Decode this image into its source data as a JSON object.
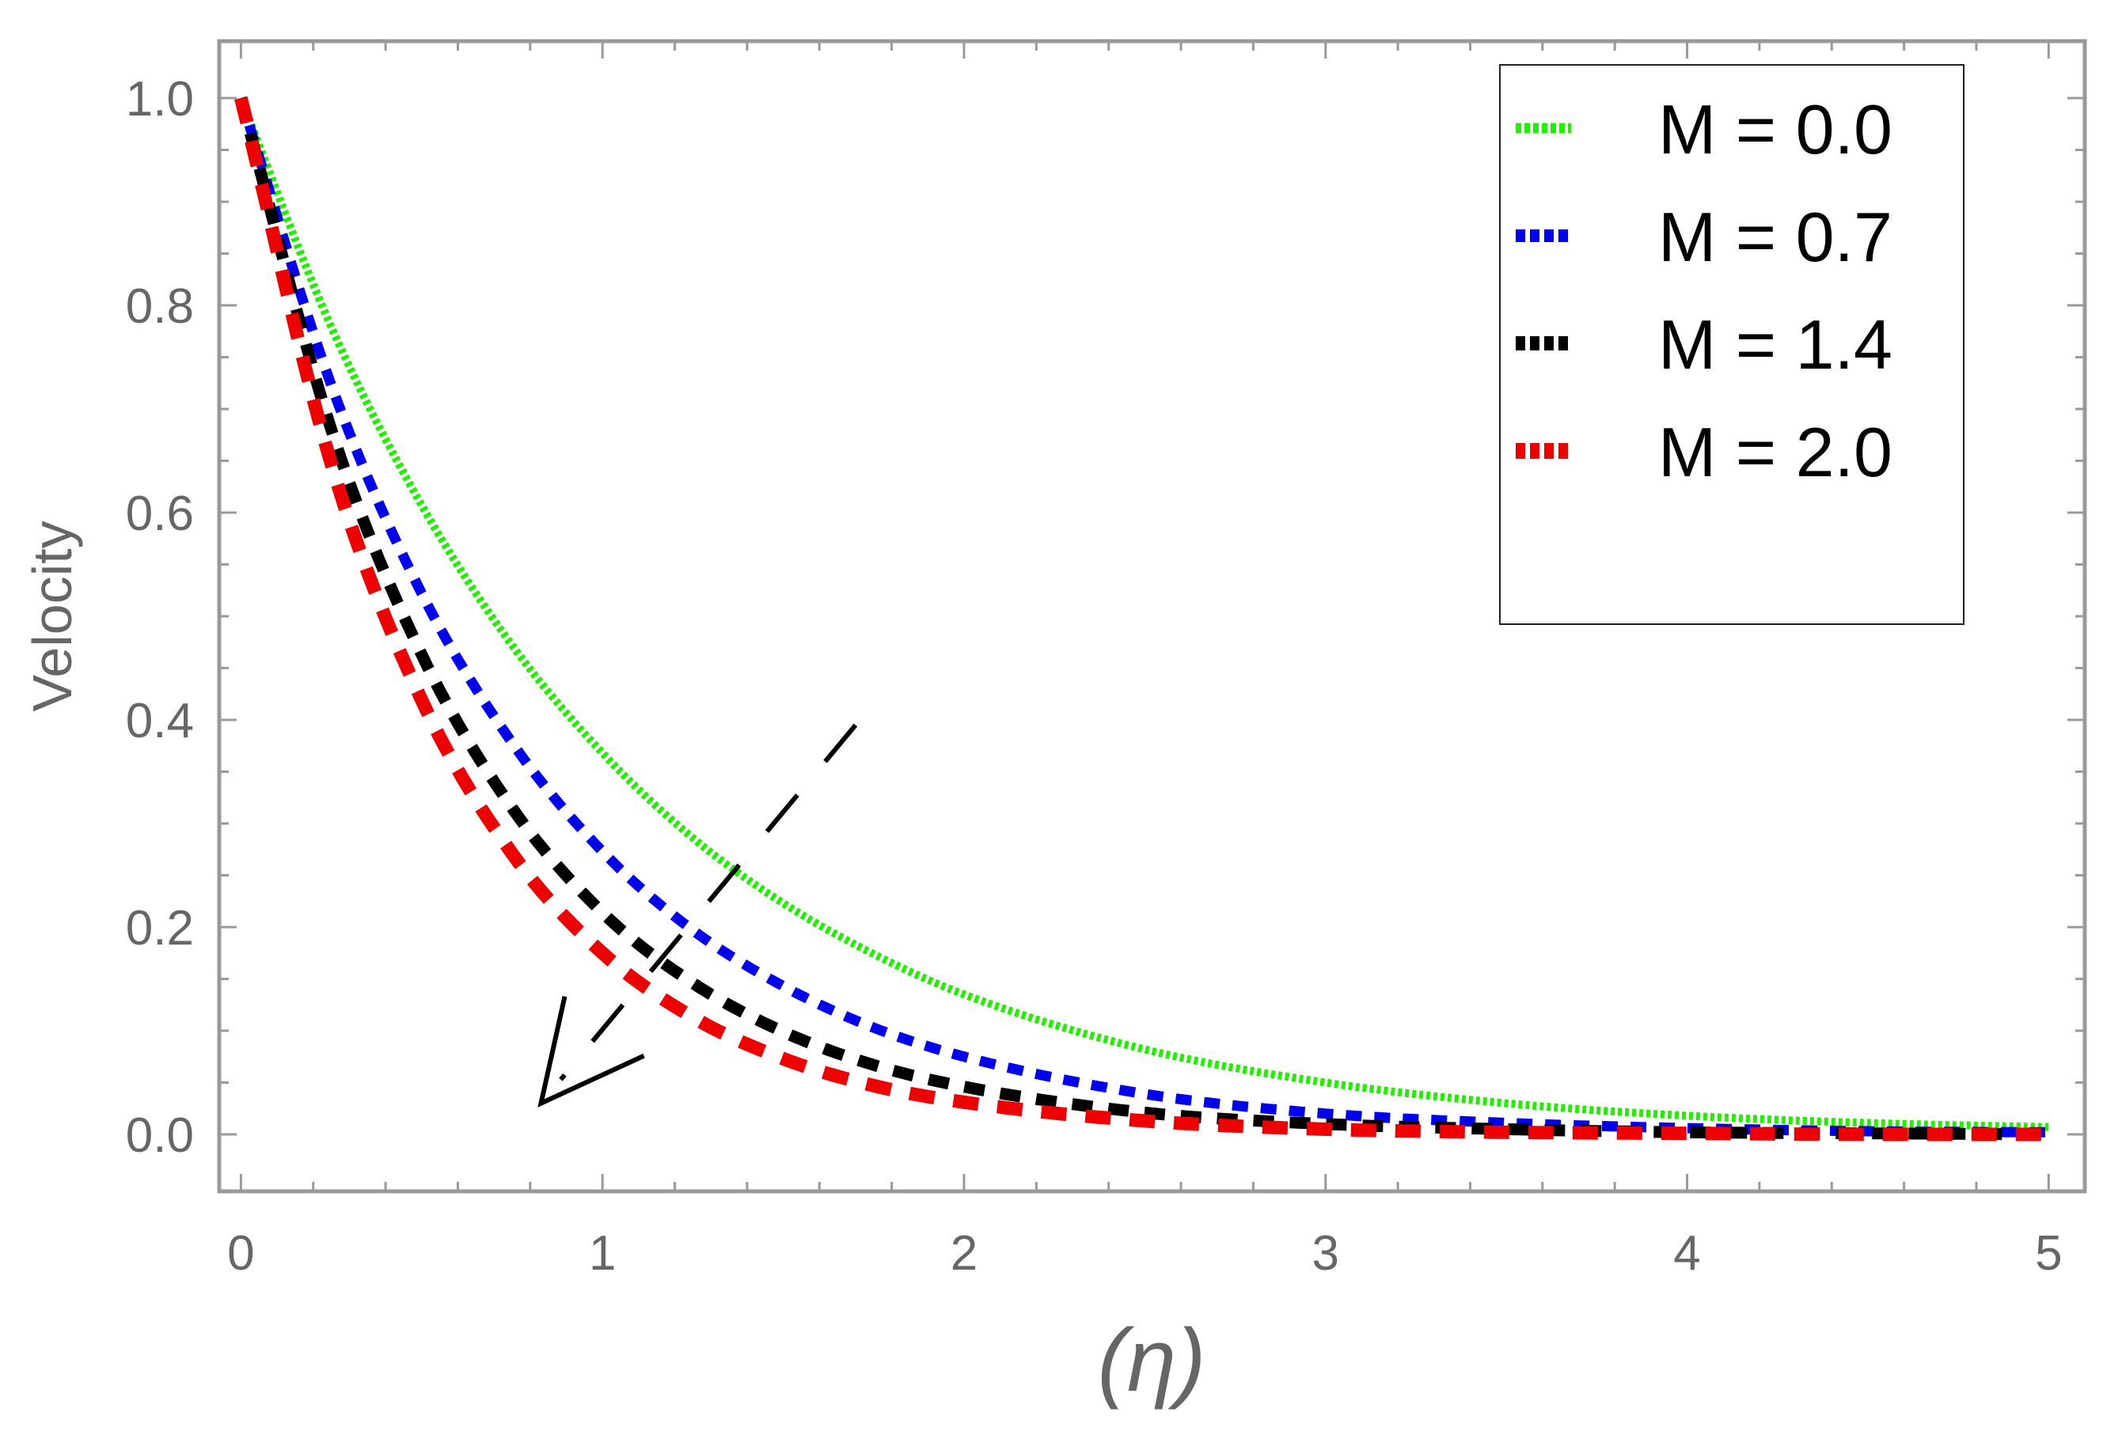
{
  "chart_data": {
    "type": "line",
    "title": "",
    "xlabel": "(η)",
    "ylabel": "Velocity",
    "xlim": [
      -0.06,
      5.1
    ],
    "ylim": [
      -0.055,
      1.055
    ],
    "x_ticks": [
      0,
      1,
      2,
      3,
      4,
      5
    ],
    "x_tick_labels": [
      "0",
      "1",
      "2",
      "3",
      "4",
      "5"
    ],
    "y_ticks": [
      0.0,
      0.2,
      0.4,
      0.6,
      0.8,
      1.0
    ],
    "y_tick_labels": [
      "0.0",
      "0.2",
      "0.4",
      "0.6",
      "0.8",
      "1.0"
    ],
    "grid": false,
    "legend_position": "top-right",
    "x": [
      0,
      0.25,
      0.5,
      0.75,
      1.0,
      1.25,
      1.5,
      1.75,
      2.0,
      2.5,
      3.0,
      3.5,
      4.0,
      4.5,
      5.0
    ],
    "series": [
      {
        "name": "M = 0.0",
        "color": "#22ee00",
        "values": [
          1.0,
          0.779,
          0.607,
          0.472,
          0.368,
          0.286,
          0.223,
          0.174,
          0.135,
          0.082,
          0.05,
          0.03,
          0.018,
          0.011,
          0.007
        ]
      },
      {
        "name": "M = 0.7",
        "color": "#0000ee",
        "values": [
          1.0,
          0.723,
          0.522,
          0.378,
          0.273,
          0.197,
          0.143,
          0.103,
          0.075,
          0.039,
          0.02,
          0.011,
          0.006,
          0.003,
          0.002
        ]
      },
      {
        "name": "M = 1.4",
        "color": "#000000",
        "values": [
          1.0,
          0.68,
          0.463,
          0.315,
          0.214,
          0.146,
          0.099,
          0.067,
          0.046,
          0.021,
          0.01,
          0.005,
          0.002,
          0.001,
          0.0
        ]
      },
      {
        "name": "M = 2.0",
        "color": "#ee0000",
        "values": [
          1.0,
          0.647,
          0.419,
          0.271,
          0.175,
          0.113,
          0.073,
          0.047,
          0.031,
          0.013,
          0.005,
          0.002,
          0.001,
          0.0,
          0.0
        ]
      }
    ],
    "annotations": [
      {
        "type": "arrow",
        "direction": "down-left",
        "meaning": "increasing M",
        "from": [
          1.7,
          0.395
        ],
        "to": [
          0.83,
          0.03
        ]
      }
    ]
  }
}
